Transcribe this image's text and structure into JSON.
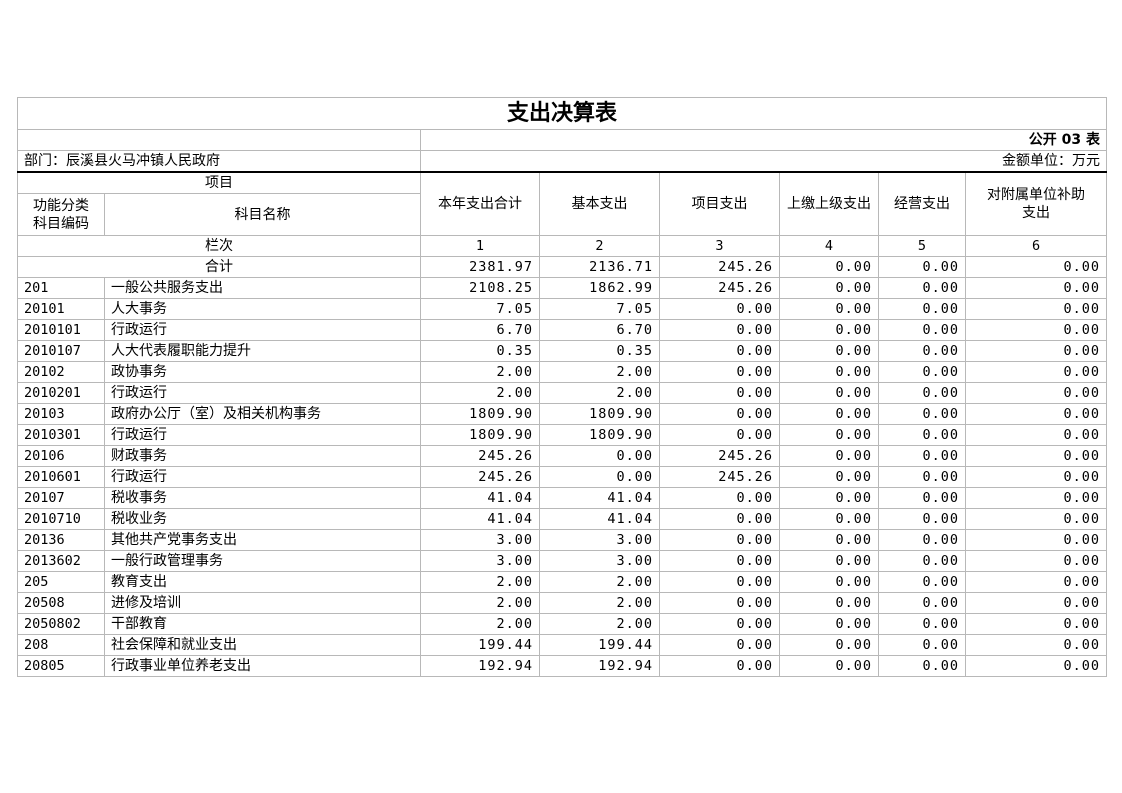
{
  "title": "支出决算表",
  "form_no": "公开 03 表",
  "department": "部门：辰溪县火马冲镇人民政府",
  "unit": "金额单位：万元",
  "header": {
    "item": "项目",
    "code": "功能分类科目编码",
    "name": "科目名称",
    "cols": [
      "本年支出合计",
      "基本支出",
      "项目支出",
      "上缴上级支出",
      "经营支出",
      "对附属单位补助支出"
    ],
    "row_label": "栏次",
    "col_numbers": [
      "1",
      "2",
      "3",
      "4",
      "5",
      "6"
    ]
  },
  "total": {
    "label": "合计",
    "values": [
      "2381.97",
      "2136.71",
      "245.26",
      "0.00",
      "0.00",
      "0.00"
    ]
  },
  "rows": [
    {
      "code": "201",
      "name": "一般公共服务支出",
      "values": [
        "2108.25",
        "1862.99",
        "245.26",
        "0.00",
        "0.00",
        "0.00"
      ]
    },
    {
      "code": "20101",
      "name": "人大事务",
      "values": [
        "7.05",
        "7.05",
        "0.00",
        "0.00",
        "0.00",
        "0.00"
      ]
    },
    {
      "code": "2010101",
      "name": "行政运行",
      "values": [
        "6.70",
        "6.70",
        "0.00",
        "0.00",
        "0.00",
        "0.00"
      ]
    },
    {
      "code": "2010107",
      "name": "人大代表履职能力提升",
      "values": [
        "0.35",
        "0.35",
        "0.00",
        "0.00",
        "0.00",
        "0.00"
      ]
    },
    {
      "code": "20102",
      "name": "政协事务",
      "values": [
        "2.00",
        "2.00",
        "0.00",
        "0.00",
        "0.00",
        "0.00"
      ]
    },
    {
      "code": "2010201",
      "name": "行政运行",
      "values": [
        "2.00",
        "2.00",
        "0.00",
        "0.00",
        "0.00",
        "0.00"
      ]
    },
    {
      "code": "20103",
      "name": "政府办公厅（室）及相关机构事务",
      "values": [
        "1809.90",
        "1809.90",
        "0.00",
        "0.00",
        "0.00",
        "0.00"
      ]
    },
    {
      "code": "2010301",
      "name": "行政运行",
      "values": [
        "1809.90",
        "1809.90",
        "0.00",
        "0.00",
        "0.00",
        "0.00"
      ]
    },
    {
      "code": "20106",
      "name": "财政事务",
      "values": [
        "245.26",
        "0.00",
        "245.26",
        "0.00",
        "0.00",
        "0.00"
      ]
    },
    {
      "code": "2010601",
      "name": "行政运行",
      "values": [
        "245.26",
        "0.00",
        "245.26",
        "0.00",
        "0.00",
        "0.00"
      ]
    },
    {
      "code": "20107",
      "name": "税收事务",
      "values": [
        "41.04",
        "41.04",
        "0.00",
        "0.00",
        "0.00",
        "0.00"
      ]
    },
    {
      "code": "2010710",
      "name": "税收业务",
      "values": [
        "41.04",
        "41.04",
        "0.00",
        "0.00",
        "0.00",
        "0.00"
      ]
    },
    {
      "code": "20136",
      "name": "其他共产党事务支出",
      "values": [
        "3.00",
        "3.00",
        "0.00",
        "0.00",
        "0.00",
        "0.00"
      ]
    },
    {
      "code": "2013602",
      "name": "一般行政管理事务",
      "values": [
        "3.00",
        "3.00",
        "0.00",
        "0.00",
        "0.00",
        "0.00"
      ]
    },
    {
      "code": "205",
      "name": "教育支出",
      "values": [
        "2.00",
        "2.00",
        "0.00",
        "0.00",
        "0.00",
        "0.00"
      ]
    },
    {
      "code": "20508",
      "name": "进修及培训",
      "values": [
        "2.00",
        "2.00",
        "0.00",
        "0.00",
        "0.00",
        "0.00"
      ]
    },
    {
      "code": "2050802",
      "name": "干部教育",
      "values": [
        "2.00",
        "2.00",
        "0.00",
        "0.00",
        "0.00",
        "0.00"
      ]
    },
    {
      "code": "208",
      "name": "社会保障和就业支出",
      "values": [
        "199.44",
        "199.44",
        "0.00",
        "0.00",
        "0.00",
        "0.00"
      ]
    },
    {
      "code": "20805",
      "name": "行政事业单位养老支出",
      "values": [
        "192.94",
        "192.94",
        "0.00",
        "0.00",
        "0.00",
        "0.00"
      ]
    }
  ]
}
